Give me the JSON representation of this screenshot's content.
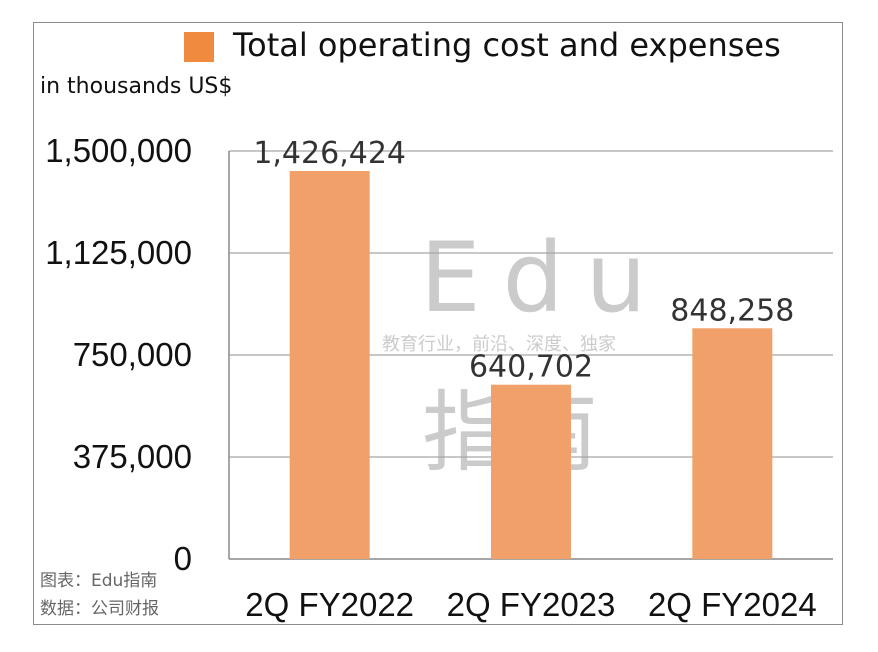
{
  "chart_data": {
    "type": "bar",
    "legend": "Total operating cost and expenses",
    "unit_label": "in thousands US$",
    "categories": [
      "2Q FY2022",
      "2Q FY2023",
      "2Q FY2024"
    ],
    "values": [
      1426424,
      640702,
      848258
    ],
    "data_labels": [
      "1,426,424",
      "640,702",
      "848,258"
    ],
    "y_ticks": [
      "0",
      "375,000",
      "750,000",
      "1,125,000",
      "1,500,000"
    ],
    "ylim": [
      0,
      1500000
    ],
    "grid": true,
    "legend_position": "top",
    "bar_color": "#f2a06a",
    "legend_color": "#f08a3e"
  },
  "source": {
    "line1": "图表：Edu指南",
    "line2": "数据：公司财报"
  },
  "watermark": {
    "large": "Edu",
    "tagline": "教育行业，前沿、深度、独家",
    "cn": "指南"
  }
}
